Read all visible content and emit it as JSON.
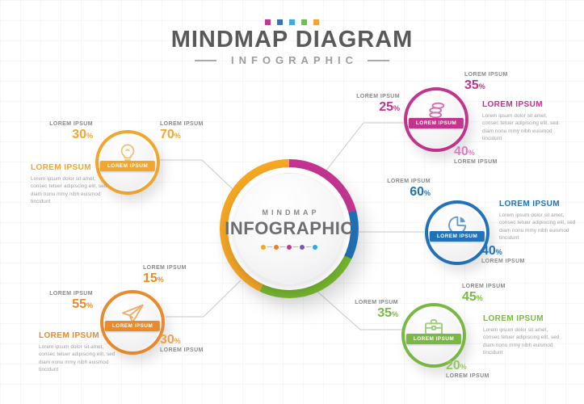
{
  "header": {
    "squares": [
      "#C0398A",
      "#2E75BB",
      "#45A9E0",
      "#6DBE4B",
      "#F2A23B"
    ],
    "title": "MINDMAP DIAGRAM",
    "subtitle": "INFOGRAPHIC"
  },
  "center": {
    "kicker": "MINDMAP",
    "title": "INFOGRAPHIC",
    "dots": [
      "#F5A623",
      "#F07B28",
      "#C13A8C",
      "#7B5AA6",
      "#29ABE2"
    ],
    "ring_segments": [
      {
        "color": "#C23490",
        "from": 0,
        "to": 75
      },
      {
        "color": "#1D71B8",
        "from": 75,
        "to": 116
      },
      {
        "color": "#76B82A",
        "from": 116,
        "to": 205
      },
      {
        "color": "#F5A623",
        "from": 205,
        "to": 360
      }
    ]
  },
  "misc": {
    "percent_sign": "%"
  },
  "nodes": [
    {
      "id": "idea",
      "icon": "lightbulb-icon",
      "color": "#F0A62F",
      "badge": "LOREM IPSUM",
      "heading": "LOREM IPSUM",
      "body": "Lorem ipsum dolor sit amet,\nconsec tetuer adipiscing elit, sed\ndiam nonu mmy nibh euismod\ntincidunt",
      "stats": [
        {
          "label": "LOREM IPSUM",
          "value": "30",
          "color": "#F0A62F"
        },
        {
          "label": "LOREM IPSUM",
          "value": "70",
          "color": "#F0A62F"
        }
      ]
    },
    {
      "id": "plane",
      "icon": "paper-plane-icon",
      "color": "#E98A2B",
      "badge": "LOREM IPSUM",
      "heading": "LOREM IPSUM",
      "body": "Lorem ipsum dolor sit amet,\nconsec tetuer adipiscing elit, sed\ndiam nonu mmy nibh euismod\ntincidunt",
      "stats": [
        {
          "label": "LOREM IPSUM",
          "value": "15",
          "color": "#E98A2B"
        },
        {
          "label": "LOREM IPSUM",
          "value": "55",
          "color": "#E98A2B"
        },
        {
          "label": "LOREM IPSUM",
          "value": "30",
          "color": "#EFA04F"
        }
      ]
    },
    {
      "id": "coins",
      "icon": "coins-icon",
      "color": "#C2358C",
      "badge": "LOREM IPSUM",
      "heading": "LOREM IPSUM",
      "body": "Lorem ipsum dolor sit amet,\nconsec tetuer adipiscing elit, sed\ndiam nonu mmy nibh euismod\ntincidunt",
      "stats": [
        {
          "label": "LOREM IPSUM",
          "value": "35",
          "color": "#C2358C"
        },
        {
          "label": "LOREM IPSUM",
          "value": "25",
          "color": "#C2358C"
        },
        {
          "label": "LOREM IPSUM",
          "value": "40",
          "color": "#DB7FBC"
        }
      ]
    },
    {
      "id": "pie",
      "icon": "pie-chart-icon",
      "color": "#2172B8",
      "badge": "LOREM IPSUM",
      "heading": "LOREM IPSUM",
      "body": "Lorem ipsum dolor sit amet,\nconsec tetuer adipiscing elit, sed\ndiam nonu mmy nibh euismod\ntincidunt",
      "stats": [
        {
          "label": "LOREM IPSUM",
          "value": "60",
          "color": "#2172B8"
        },
        {
          "label": "LOREM IPSUM",
          "value": "40",
          "color": "#2172B8"
        }
      ]
    },
    {
      "id": "briefcase",
      "icon": "briefcase-icon",
      "color": "#7AB844",
      "badge": "LOREM IPSUM",
      "heading": "LOREM IPSUM",
      "body": "Lorem ipsum dolor sit amet,\nconsec tetuer adipiscing elit, sed\ndiam nonu mmy nibh euismod\ntincidunt",
      "stats": [
        {
          "label": "LOREM IPSUM",
          "value": "45",
          "color": "#7AB844"
        },
        {
          "label": "LOREM IPSUM",
          "value": "35",
          "color": "#7AB844"
        },
        {
          "label": "LOREM IPSUM",
          "value": "20",
          "color": "#97C661"
        }
      ]
    }
  ]
}
